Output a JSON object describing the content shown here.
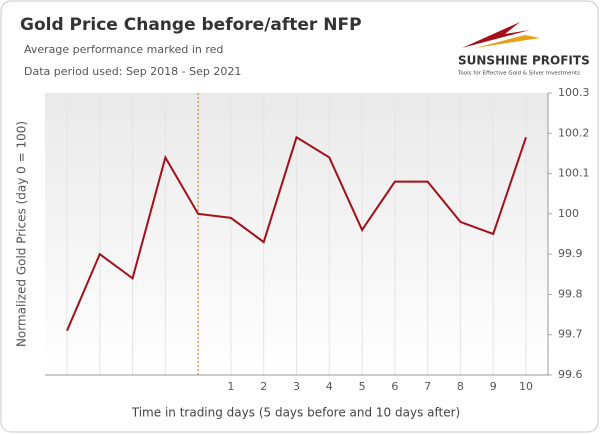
{
  "chart_data": {
    "type": "line",
    "title": "Gold Price Change before/after NFP",
    "subtitle": "Average performance marked in red",
    "note": "Data period used: Sep 2018 - Sep 2021",
    "logo_text": "SUNSHINE PROFITS",
    "logo_tagline": "Tools for Effective Gold & Silver Investments",
    "y_label": "Normalized Gold Prices (day 0 = 100)",
    "x_label": "Time in trading days  (5 days before and 10 days after)",
    "categories": [
      null,
      null,
      null,
      null,
      null,
      "1",
      "2",
      "3",
      "4",
      "5",
      "6",
      "7",
      "8",
      "9",
      "10"
    ],
    "series": [
      {
        "name": "Average performance",
        "color": "#a3101a",
        "values": [
          99.71,
          99.9,
          99.84,
          100.14,
          100.0,
          99.99,
          99.93,
          100.19,
          100.14,
          99.96,
          100.08,
          100.08,
          99.98,
          99.95,
          100.19
        ]
      }
    ],
    "ylim": [
      99.6,
      100.3
    ],
    "yticks": [
      99.6,
      99.7,
      99.8,
      99.9,
      100,
      100.1,
      100.2,
      100.3
    ],
    "grid": true
  }
}
